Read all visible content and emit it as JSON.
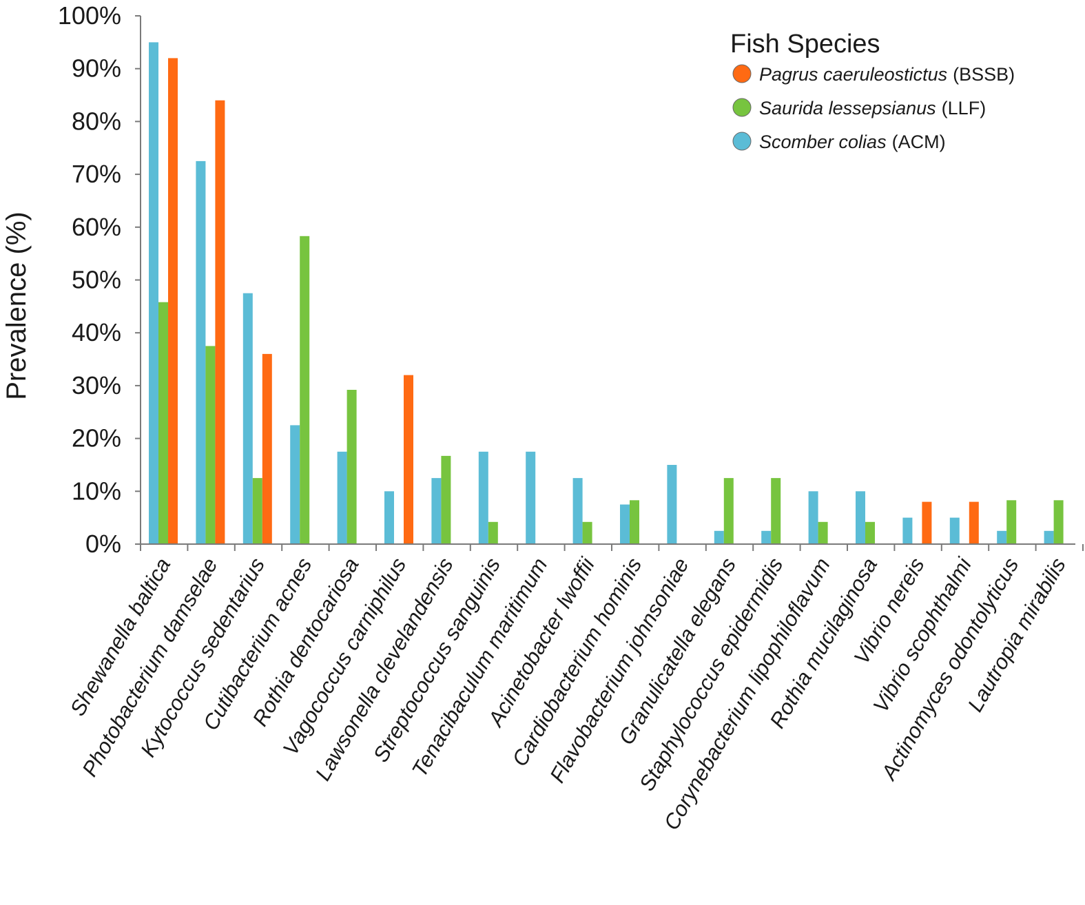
{
  "chart_data": {
    "type": "bar",
    "title": "",
    "xlabel": "",
    "ylabel": "Prevalence (%)",
    "ylim": [
      0,
      100
    ],
    "y_ticks": [
      "0%",
      "10%",
      "20%",
      "30%",
      "40%",
      "50%",
      "60%",
      "70%",
      "80%",
      "90%",
      "100%"
    ],
    "y_tick_values": [
      0,
      10,
      20,
      30,
      40,
      50,
      60,
      70,
      80,
      90,
      100
    ],
    "grid": false,
    "legend_placement": "top-right",
    "legend_title": "Fish Species",
    "categories": [
      "Shewanella baltica",
      "Photobacterium damselae",
      "Kytococcus sedentarius",
      "Cutibacterium acnes",
      "Rothia dentocariosa",
      "Vagococcus carniphilus",
      "Lawsonella clevelandensis",
      "Streptococcus sanguinis",
      "Tenacibaculum maritimum",
      "Acinetobacter lwoffii",
      "Cardiobacterium hominis",
      "Flavobacterium johnsoniae",
      "Granulicatella elegans",
      "Staphylococcus epidermidis",
      "Corynebacterium lipophiloflavum",
      "Rothia mucilaginosa",
      "Vibrio nereis",
      "Vibrio scophthalmi",
      "Actinomyces odontolyticus",
      "Lautropia mirabilis"
    ],
    "series": [
      {
        "name": "Scomber colias",
        "code": "(ACM)",
        "color": "#5bbcd6",
        "values": [
          95,
          72.5,
          47.5,
          22.5,
          17.5,
          10,
          12.5,
          17.5,
          17.5,
          12.5,
          7.5,
          15,
          2.5,
          2.5,
          10,
          10,
          5,
          5,
          2.5,
          2.5
        ]
      },
      {
        "name": "Saurida lessepsianus",
        "code": "(LLF)",
        "color": "#77c43f",
        "values": [
          45.8,
          37.5,
          12.5,
          58.3,
          29.2,
          0,
          16.7,
          4.2,
          0,
          4.2,
          8.3,
          0,
          12.5,
          12.5,
          4.2,
          4.2,
          0,
          0,
          8.3,
          8.3
        ]
      },
      {
        "name": "Pagrus caeruleostictus",
        "code": "(BSSB)",
        "color": "#ff6a13",
        "values": [
          92,
          84,
          36,
          0,
          0,
          32,
          0,
          0,
          0,
          0,
          0,
          0,
          0,
          0,
          0,
          0,
          8,
          8,
          0,
          0
        ]
      }
    ],
    "legend_order": [
      "Pagrus caeruleostictus",
      "Saurida lessepsianus",
      "Scomber colias"
    ]
  }
}
